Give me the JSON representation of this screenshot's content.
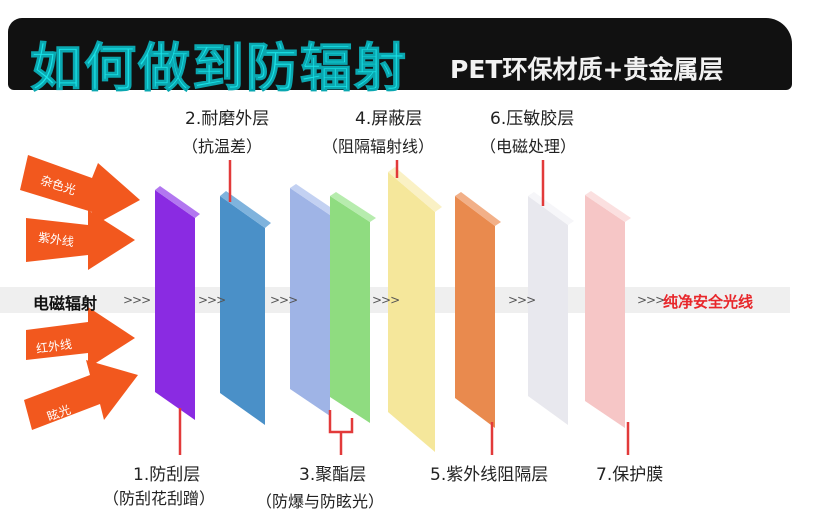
{
  "banner": {
    "title": "如何做到防辐射",
    "subtitle": "PET环保材质+贵金属层",
    "title_color": "#19e3e8"
  },
  "band": {
    "label": "电磁辐射",
    "chevron": ">>>",
    "output": "纯净安全光线",
    "output_color": "#e8262a"
  },
  "arrows": [
    {
      "label": "杂色光"
    },
    {
      "label": "紫外线"
    },
    {
      "label": "红外线"
    },
    {
      "label": "眩光"
    }
  ],
  "layers": [
    {
      "name": "1.防刮层",
      "detail": "（防刮花刮蹭）",
      "color": "#8a2be2"
    },
    {
      "name": "2.耐磨外层",
      "detail": "（抗温差）",
      "color": "#4a90c8"
    },
    {
      "name": "3.聚酯层",
      "detail": "（防爆与防眩光）",
      "color": "#9fb4e6",
      "color2": "#8fdc80"
    },
    {
      "name": "4.屏蔽层",
      "detail": "（阻隔辐射线）",
      "color": "#f5e79b"
    },
    {
      "name": "5.紫外线阻隔层",
      "detail": "",
      "color": "#e98a4e"
    },
    {
      "name": "6.压敏胶层",
      "detail": "（电磁处理）",
      "color": "#e8e8ee"
    },
    {
      "name": "7.保护膜",
      "detail": "",
      "color": "#f6c6c6"
    }
  ],
  "pointer_color": "#e23a3a",
  "arrow_color": "#f2581e"
}
